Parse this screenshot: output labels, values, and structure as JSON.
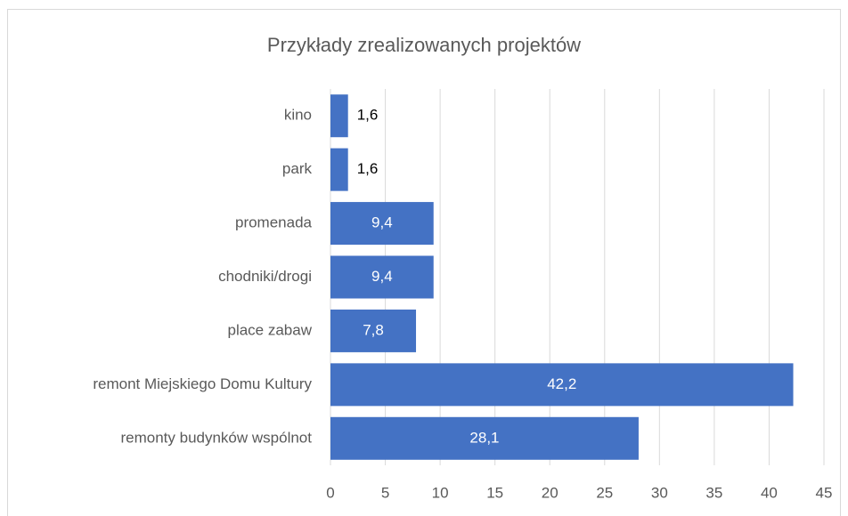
{
  "chart_data": {
    "type": "barh",
    "title": "Przykłady zrealizowanych projektów",
    "categories": [
      "kino",
      "park",
      "promenada",
      "chodniki/drogi",
      "place zabaw",
      "remont Miejskiego Domu Kultury",
      "remonty budynków wspólnot"
    ],
    "values": [
      1.6,
      1.6,
      9.4,
      9.4,
      7.8,
      42.2,
      28.1
    ],
    "value_labels": [
      "1,6",
      "1,6",
      "9,4",
      "9,4",
      "7,8",
      "42,2",
      "28,1"
    ],
    "color": "#4472c4",
    "xlim": [
      0,
      45
    ],
    "xticks": [
      0,
      5,
      10,
      15,
      20,
      25,
      30,
      35,
      40,
      45
    ],
    "grid": true
  }
}
